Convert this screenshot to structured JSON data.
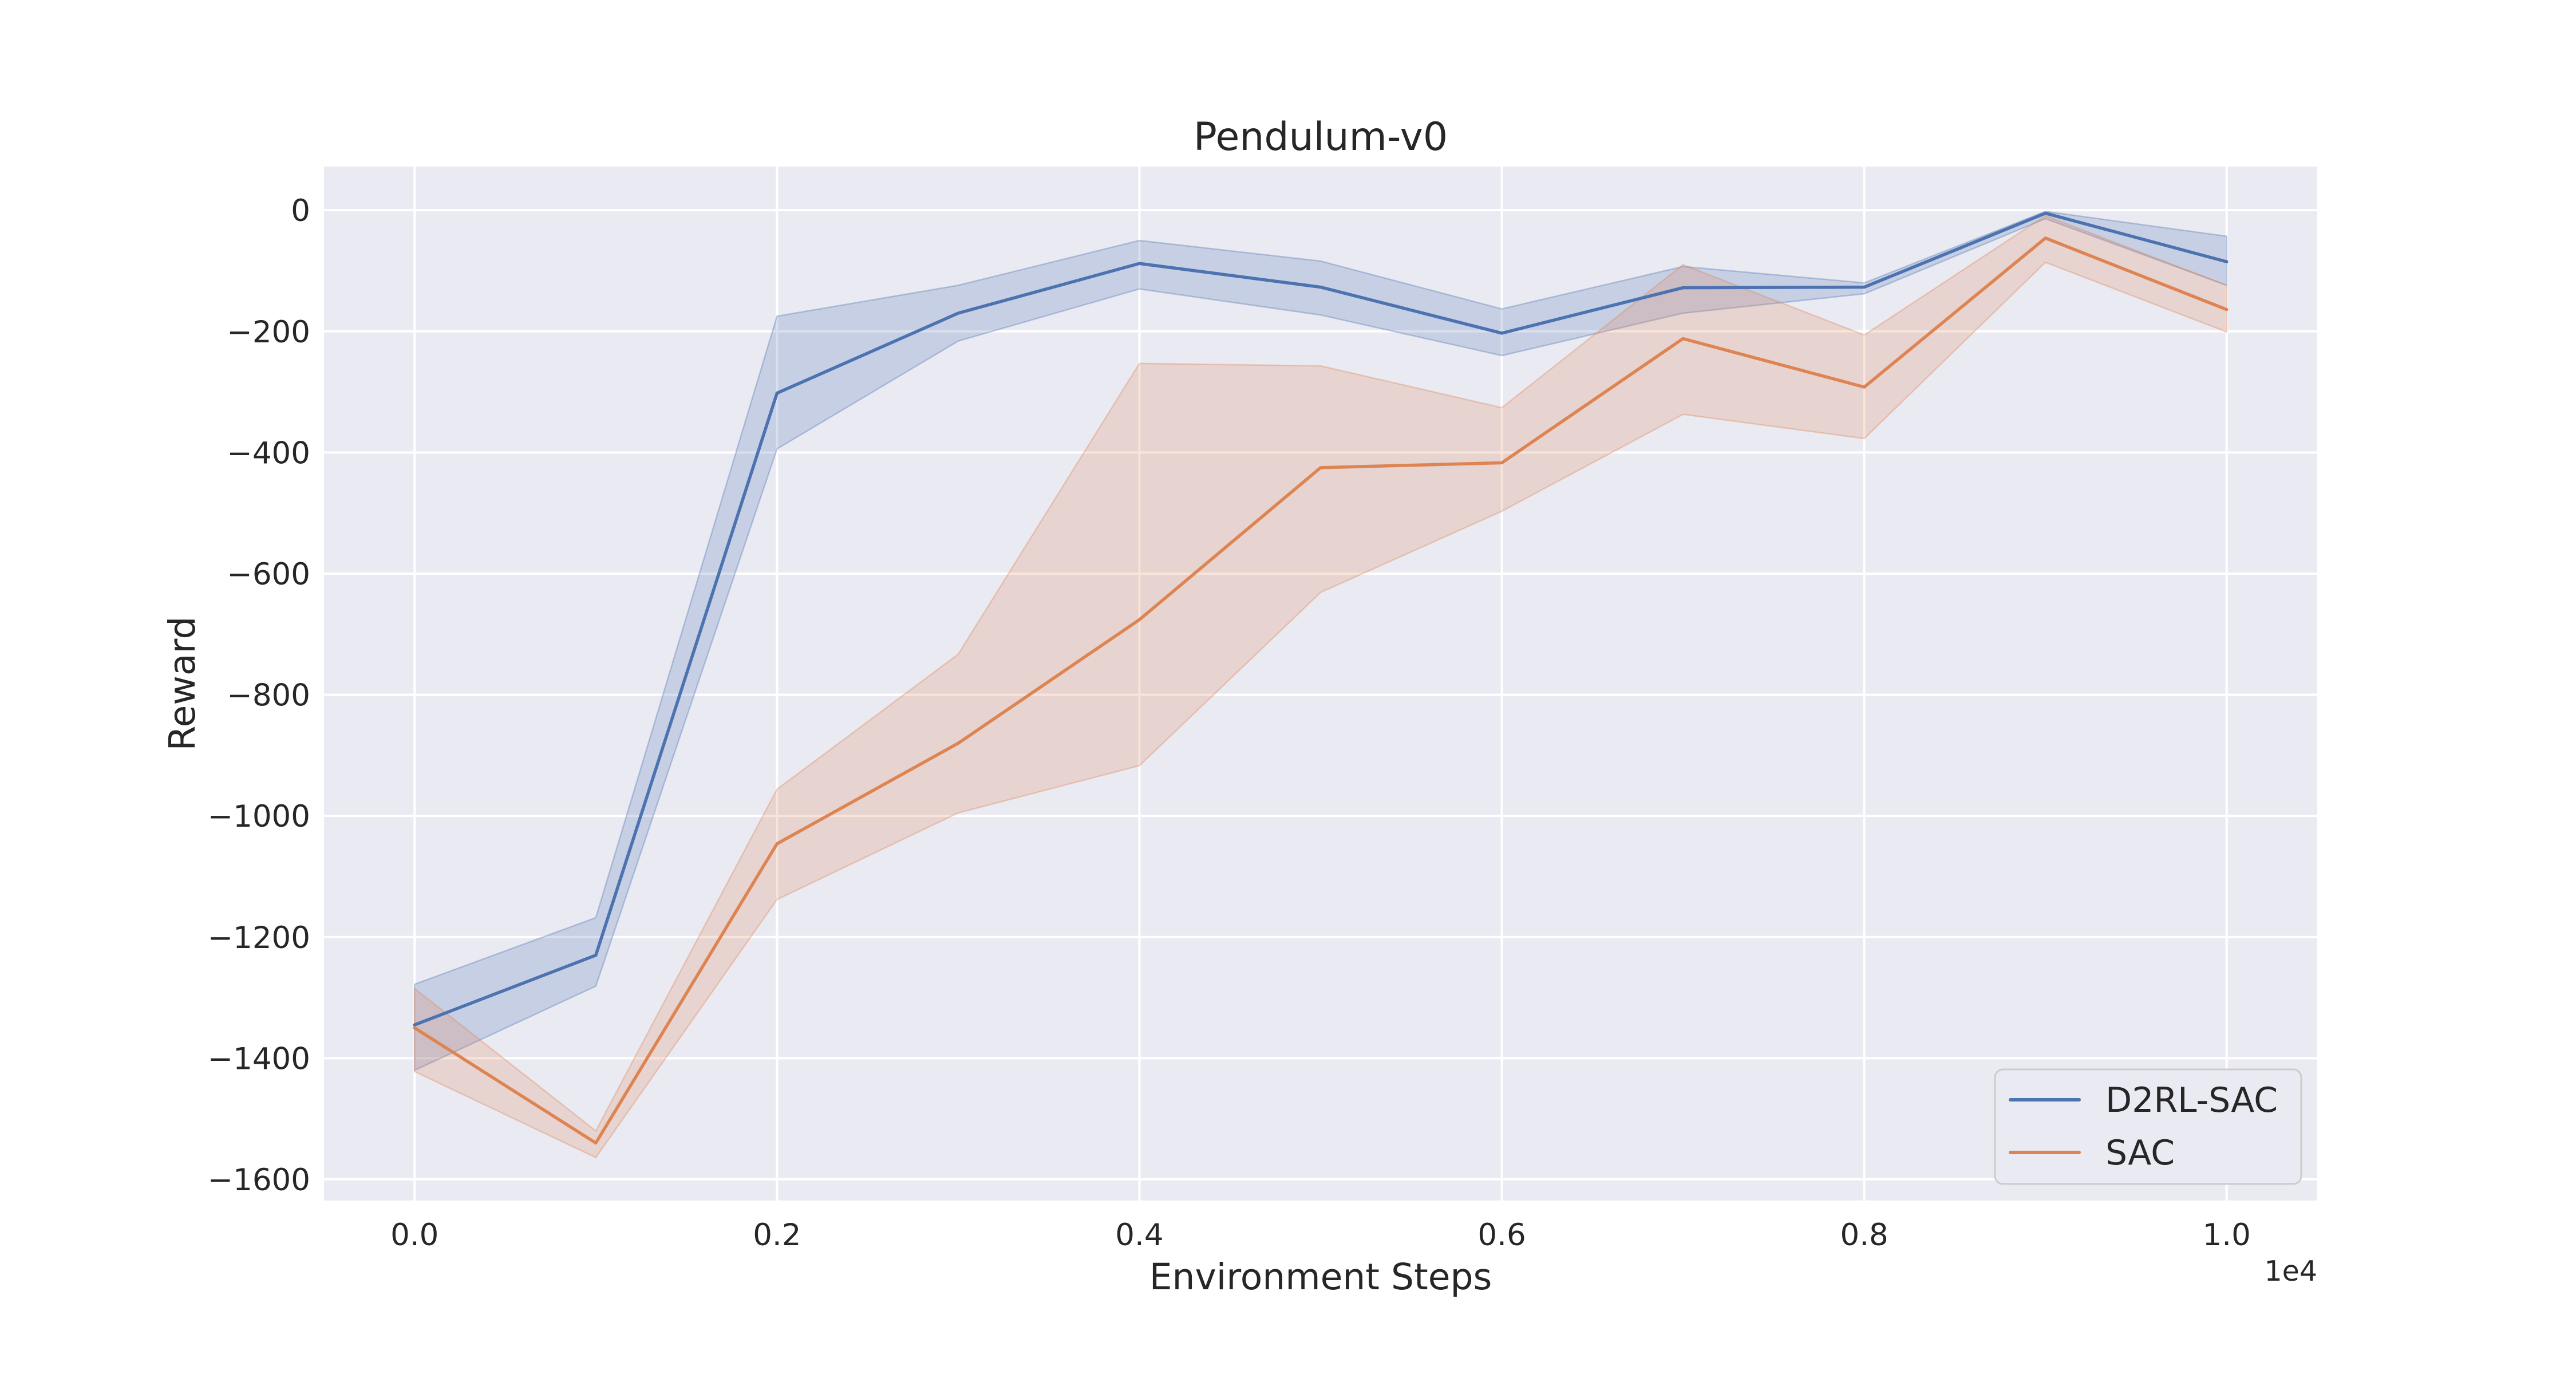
{
  "title": "Pendulum-v0",
  "axes": {
    "xlabel": "Environment Steps",
    "ylabel": "Reward",
    "x_offset_label": "1e4"
  },
  "legend": {
    "position": "lower right",
    "entries": [
      {
        "label": "D2RL-SAC",
        "color": "#4c72b0"
      },
      {
        "label": "SAC",
        "color": "#dd8452"
      }
    ]
  },
  "style": {
    "plot_background": "#eaeaf2",
    "grid_color": "#ffffff",
    "text_color": "#262626",
    "legend_face": "#eaeaf2",
    "legend_edge": "#cccccc",
    "band_alpha": 0.22,
    "band_edge_alpha": 0.35
  },
  "chart_data": {
    "type": "line",
    "title": "Pendulum-v0",
    "xlabel": "Environment Steps",
    "ylabel": "Reward",
    "x_multiplier_label": "1e4",
    "grid": true,
    "legend_position": "lower right",
    "xlim": [
      -500,
      10500
    ],
    "ylim": [
      -1635,
      72
    ],
    "x": [
      0,
      1000,
      2000,
      3000,
      4000,
      5000,
      6000,
      7000,
      8000,
      9000,
      10000
    ],
    "xticks": {
      "values": [
        0,
        2000,
        4000,
        6000,
        8000,
        10000
      ],
      "labels": [
        "0.0",
        "0.2",
        "0.4",
        "0.6",
        "0.8",
        "1.0"
      ]
    },
    "yticks": {
      "values": [
        0,
        -200,
        -400,
        -600,
        -800,
        -1000,
        -1200,
        -1400,
        -1600
      ],
      "labels": [
        "0",
        "−200",
        "−400",
        "−600",
        "−800",
        "−1000",
        "−1200",
        "−1400",
        "−1600"
      ]
    },
    "series": [
      {
        "name": "D2RL-SAC",
        "color": "#4c72b0",
        "mean": [
          -1345,
          -1230,
          -302,
          -170,
          -88,
          -127,
          -203,
          -128,
          -127,
          -5,
          -85
        ],
        "band_high": [
          -1278,
          -1168,
          -175,
          -124,
          -50,
          -84,
          -163,
          -93,
          -120,
          -2,
          -43
        ],
        "band_low": [
          -1420,
          -1281,
          -394,
          -216,
          -130,
          -173,
          -240,
          -170,
          -138,
          -14,
          -124
        ]
      },
      {
        "name": "SAC",
        "color": "#dd8452",
        "mean": [
          -1350,
          -1540,
          -1046,
          -880,
          -676,
          -425,
          -417,
          -212,
          -292,
          -46,
          -164
        ],
        "band_high": [
          -1285,
          -1520,
          -956,
          -733,
          -253,
          -257,
          -326,
          -90,
          -206,
          -9,
          -124
        ],
        "band_low": [
          -1422,
          -1564,
          -1138,
          -995,
          -917,
          -631,
          -497,
          -337,
          -377,
          -86,
          -201
        ]
      }
    ]
  }
}
